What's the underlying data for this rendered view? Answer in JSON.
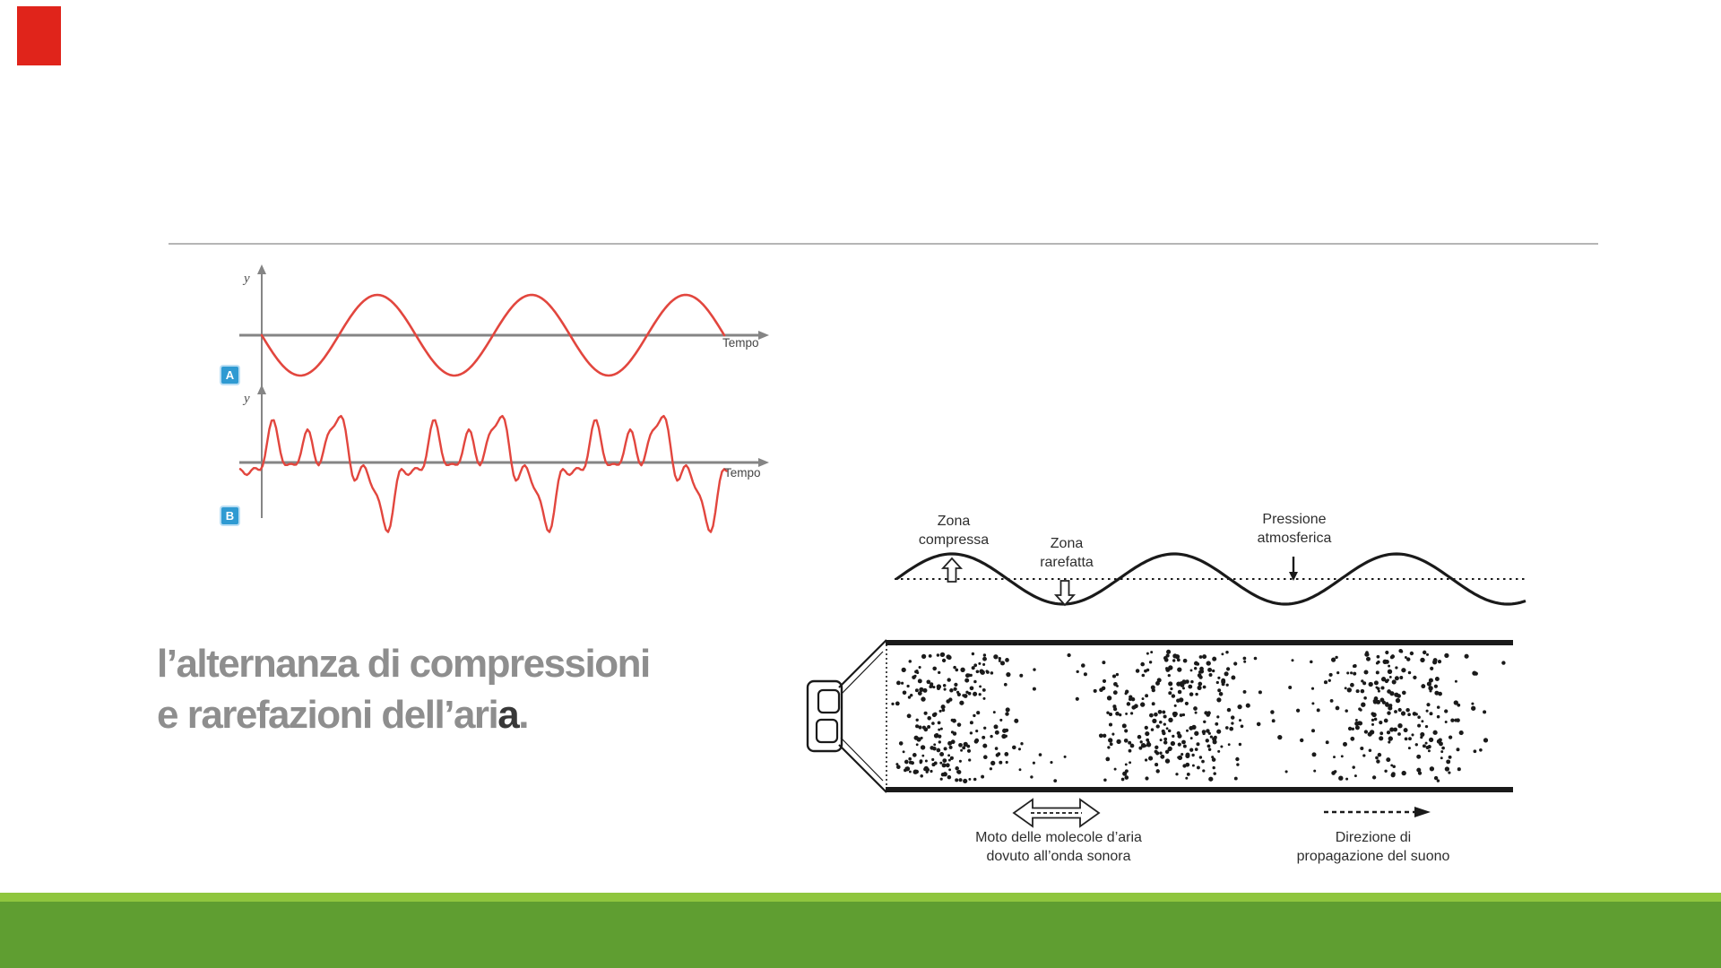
{
  "colors": {
    "red": "#e0241b",
    "wave_red": "#e2463e",
    "badge_blue": "#2f9ad2",
    "heading_gray": "#8e8e8e",
    "heading_dark": "#383838",
    "divider_gray": "#b5b5b5",
    "axis_gray": "#858585",
    "ink": "#1a1a1a",
    "green_light": "#8fc63e",
    "green_dark": "#5f9e31"
  },
  "heading": {
    "line1": "l’alternanza di compressioni",
    "line2_pre": "e rarefazioni dell’ari",
    "line2_highlight": "a",
    "line2_post": "."
  },
  "figureA": {
    "badge": "A",
    "y_label": "y",
    "x_label": "Tempo"
  },
  "figureB": {
    "badge": "B",
    "y_label": "y",
    "x_label": "Tempo"
  },
  "diagram": {
    "zona_compressa": [
      "Zona",
      "compressa"
    ],
    "zona_rarefatta": [
      "Zona",
      "rarefatta"
    ],
    "pressione": [
      "Pressione",
      "atmosferica"
    ],
    "moto": [
      "Moto delle molecole d’aria",
      "dovuto all’onda sonora"
    ],
    "direzione": [
      "Direzione di",
      "propagazione del suono"
    ]
  },
  "waves": {
    "figA": {
      "period": 172,
      "amplitude": 45,
      "cycles": 3
    },
    "figB": {
      "period": 180,
      "harmonics": [
        [
          1,
          30,
          0
        ],
        [
          2,
          22,
          2.1
        ],
        [
          5,
          20,
          0.7
        ],
        [
          9,
          9,
          0.3
        ]
      ]
    },
    "pressure": {
      "period": 248,
      "amplitude": 28,
      "compression_centers": [
        1062,
        1310,
        1558
      ],
      "rarefaction_centers": [
        1186,
        1434,
        1682
      ]
    }
  }
}
